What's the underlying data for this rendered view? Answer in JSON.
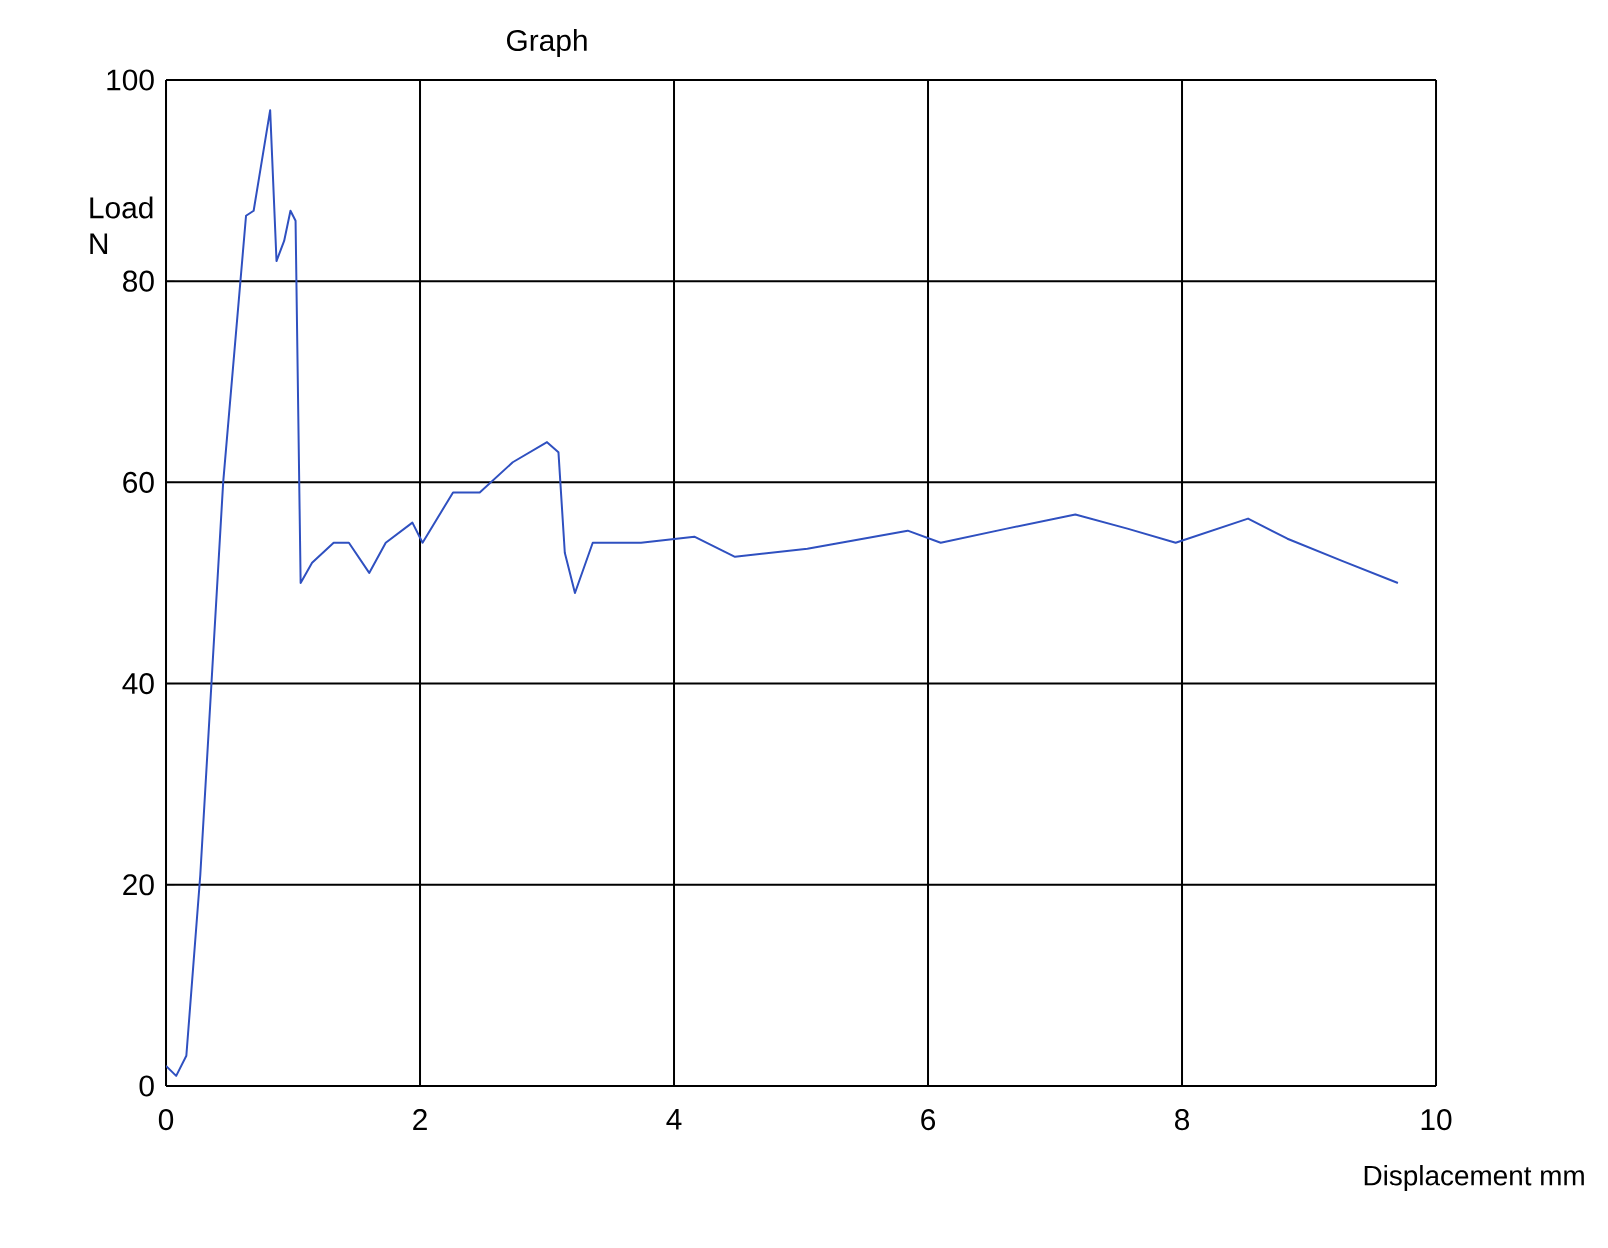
{
  "chart_data": {
    "type": "line",
    "title": "Graph",
    "xlabel": "Displacement mm",
    "ylabel": "Load N",
    "xlim": [
      0,
      10
    ],
    "ylim": [
      0,
      100
    ],
    "xticks": [
      0,
      2,
      4,
      6,
      8,
      10
    ],
    "yticks": [
      0,
      20,
      40,
      60,
      80,
      100
    ],
    "grid": true,
    "series": [
      {
        "color": "#2f50c0",
        "x": [
          0.0,
          0.08,
          0.16,
          0.27,
          0.45,
          0.63,
          0.69,
          0.82,
          0.87,
          0.93,
          0.98,
          1.02,
          1.06,
          1.15,
          1.32,
          1.44,
          1.6,
          1.73,
          1.94,
          2.02,
          2.26,
          2.47,
          2.73,
          3.0,
          3.09,
          3.14,
          3.22,
          3.36,
          3.56,
          3.74,
          4.16,
          4.48,
          5.05,
          5.84,
          6.1,
          6.62,
          7.16,
          7.57,
          7.95,
          8.52,
          8.83,
          9.26,
          9.7
        ],
        "values": [
          2,
          1,
          3,
          21,
          60,
          86.5,
          87,
          97,
          82,
          84,
          87,
          86,
          50,
          52,
          54,
          54,
          51,
          54,
          56,
          54,
          59,
          59,
          62,
          64,
          63,
          53,
          49,
          54,
          54,
          54,
          54.6,
          52.6,
          53.4,
          55.2,
          54,
          55.4,
          56.8,
          55.4,
          54,
          56.4,
          54.4,
          52.2,
          50
        ]
      }
    ]
  }
}
